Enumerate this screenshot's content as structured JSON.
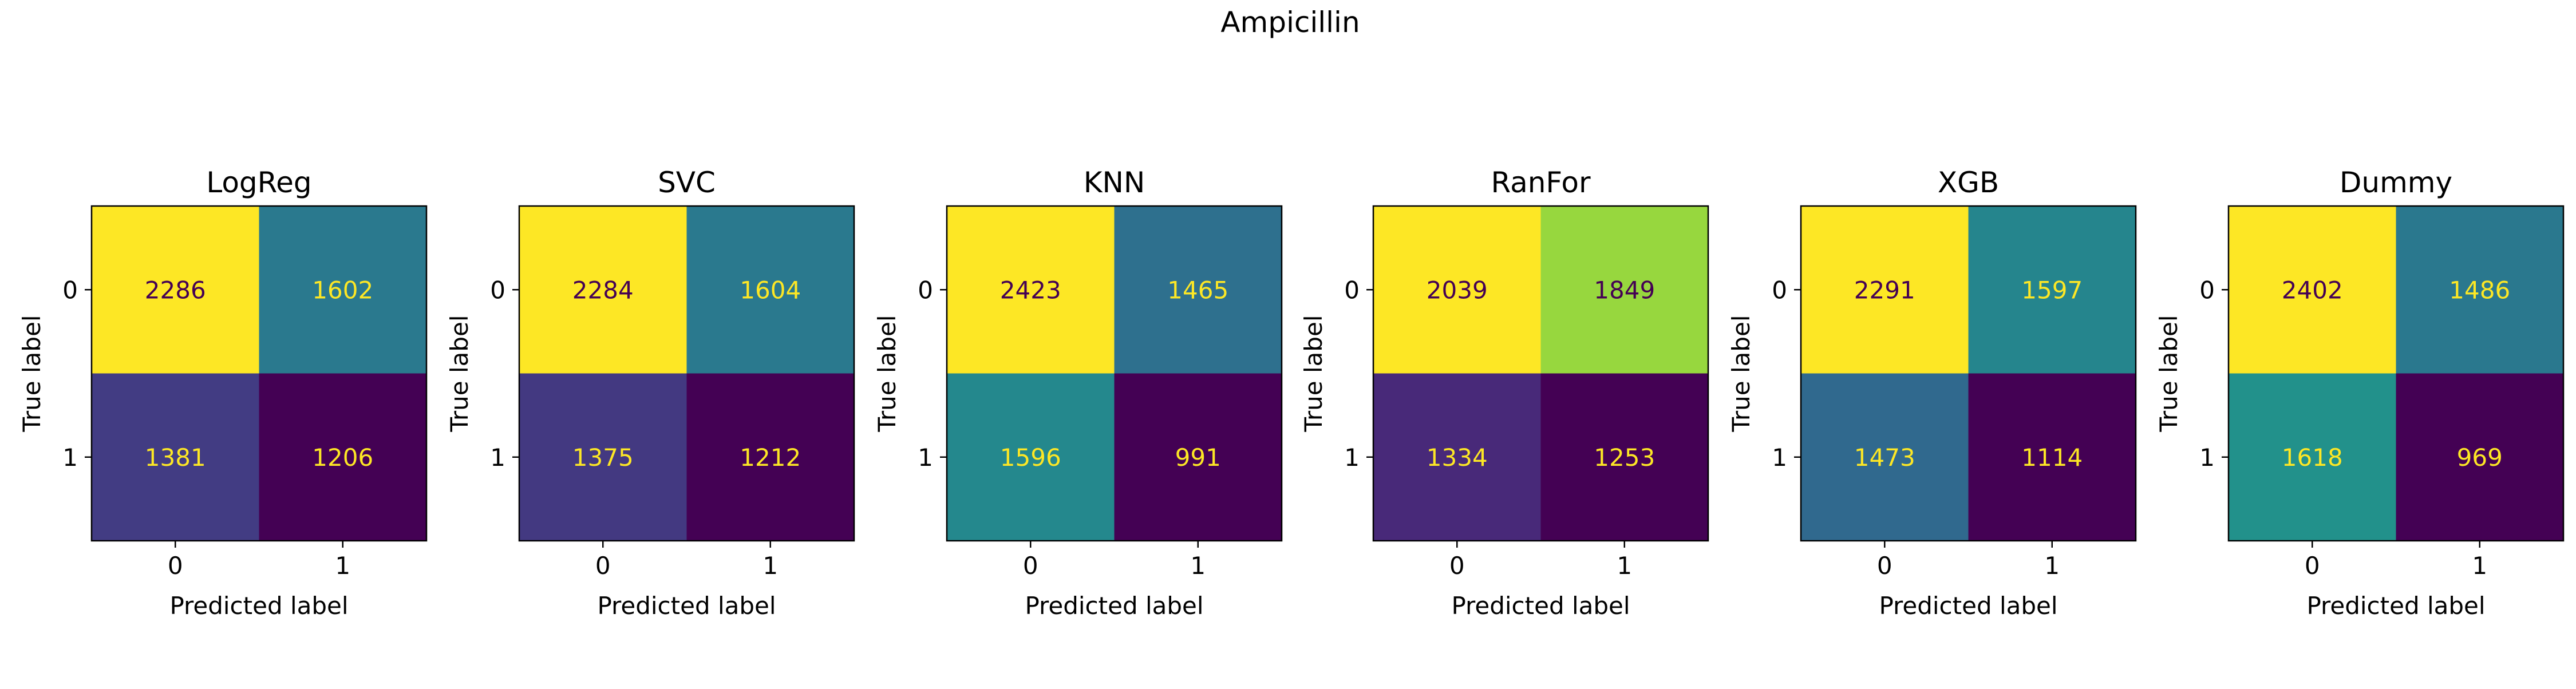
{
  "figure": {
    "title": "Ampicillin"
  },
  "chart_data": [
    {
      "type": "heatmap",
      "title": "LogReg",
      "xlabel": "Predicted label",
      "ylabel": "True label",
      "x_ticks": [
        "0",
        "1"
      ],
      "y_ticks": [
        "0",
        "1"
      ],
      "matrix": [
        [
          2286,
          1602
        ],
        [
          1381,
          1206
        ]
      ]
    },
    {
      "type": "heatmap",
      "title": "SVC",
      "xlabel": "Predicted label",
      "ylabel": "True label",
      "x_ticks": [
        "0",
        "1"
      ],
      "y_ticks": [
        "0",
        "1"
      ],
      "matrix": [
        [
          2284,
          1604
        ],
        [
          1375,
          1212
        ]
      ]
    },
    {
      "type": "heatmap",
      "title": "KNN",
      "xlabel": "Predicted label",
      "ylabel": "True label",
      "x_ticks": [
        "0",
        "1"
      ],
      "y_ticks": [
        "0",
        "1"
      ],
      "matrix": [
        [
          2423,
          1465
        ],
        [
          1596,
          991
        ]
      ]
    },
    {
      "type": "heatmap",
      "title": "RanFor",
      "xlabel": "Predicted label",
      "ylabel": "True label",
      "x_ticks": [
        "0",
        "1"
      ],
      "y_ticks": [
        "0",
        "1"
      ],
      "matrix": [
        [
          2039,
          1849
        ],
        [
          1334,
          1253
        ]
      ]
    },
    {
      "type": "heatmap",
      "title": "XGB",
      "xlabel": "Predicted label",
      "ylabel": "True label",
      "x_ticks": [
        "0",
        "1"
      ],
      "y_ticks": [
        "0",
        "1"
      ],
      "matrix": [
        [
          2291,
          1597
        ],
        [
          1473,
          1114
        ]
      ]
    },
    {
      "type": "heatmap",
      "title": "Dummy",
      "xlabel": "Predicted label",
      "ylabel": "True label",
      "x_ticks": [
        "0",
        "1"
      ],
      "y_ticks": [
        "0",
        "1"
      ],
      "matrix": [
        [
          2402,
          1486
        ],
        [
          1618,
          969
        ]
      ]
    }
  ],
  "colormap": "viridis",
  "text_colors": {
    "dark": "#440154",
    "light": "#fde725"
  }
}
